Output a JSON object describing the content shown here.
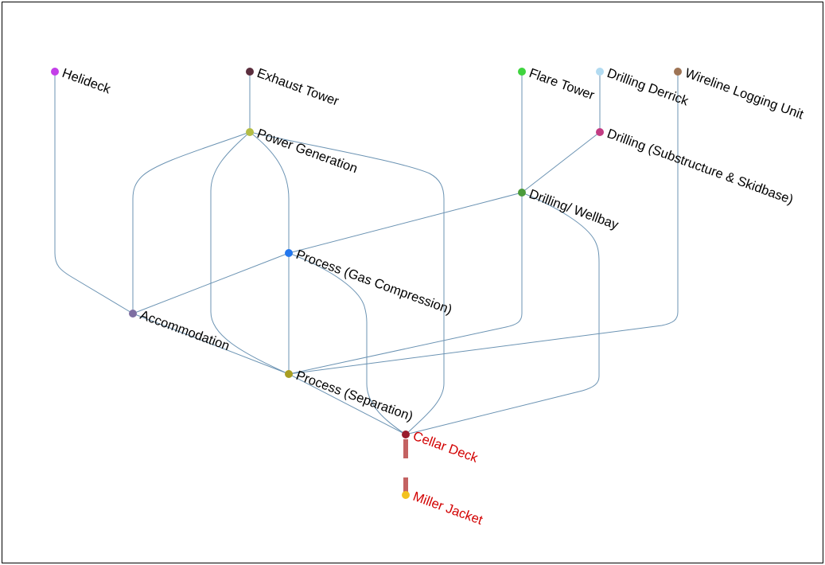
{
  "diagram": {
    "edge_color": "#6b93b3",
    "jacket_link_color": "#c46262",
    "nodes": [
      {
        "label": "Helideck",
        "color": "#c33fe8",
        "label_color": "#000000"
      },
      {
        "label": "Exhaust Tower",
        "color": "#5b2e3e",
        "label_color": "#000000"
      },
      {
        "label": "Flare Tower",
        "color": "#3fd43f",
        "label_color": "#000000"
      },
      {
        "label": "Drilling Derrick",
        "color": "#b2dbf1",
        "label_color": "#000000"
      },
      {
        "label": "Wireline Logging Unit",
        "color": "#9e7455",
        "label_color": "#000000"
      },
      {
        "label": "Power Generation",
        "color": "#b4bd45",
        "label_color": "#000000"
      },
      {
        "label": "Drilling (Substructure & Skidbase)",
        "color": "#c23c83",
        "label_color": "#000000"
      },
      {
        "label": "Drilling/ Wellbay",
        "color": "#4b9b3b",
        "label_color": "#000000"
      },
      {
        "label": "Process (Gas Compression)",
        "color": "#2377ee",
        "label_color": "#000000"
      },
      {
        "label": "Accommodation",
        "color": "#7e6fa2",
        "label_color": "#000000"
      },
      {
        "label": "Process (Separation)",
        "color": "#a89e22",
        "label_color": "#000000"
      },
      {
        "label": "Cellar Deck",
        "color": "#991b2d",
        "label_color": "#d20000"
      },
      {
        "label": "Miller Jacket",
        "color": "#f3c21f",
        "label_color": "#d20000"
      }
    ]
  }
}
